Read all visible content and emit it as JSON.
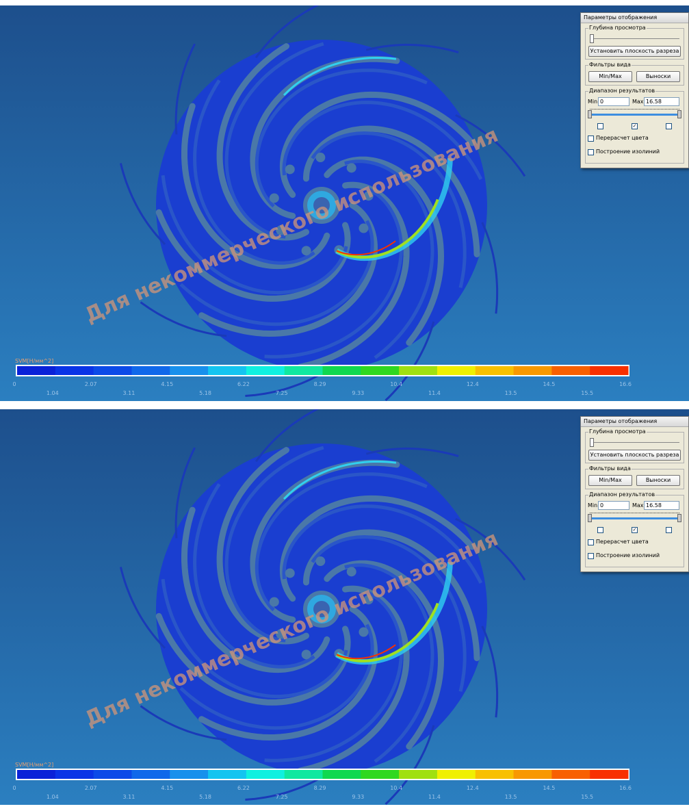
{
  "panels": [
    {
      "watermark": "Для некоммерческого использования",
      "colorbar": {
        "title": "SVM[Н/мм^2]",
        "labels": [
          "0",
          "1.04",
          "2.07",
          "3.11",
          "4.15",
          "5.18",
          "6.22",
          "7.25",
          "8.29",
          "9.33",
          "10.4",
          "11.4",
          "12.4",
          "13.5",
          "14.5",
          "15.5",
          "16.6"
        ],
        "colors": [
          "#0a22d8",
          "#0a34e6",
          "#0c4ae8",
          "#1068ea",
          "#1890ec",
          "#14c4f0",
          "#10f0e0",
          "#10e8a0",
          "#10d850",
          "#30d820",
          "#a0e010",
          "#f0f000",
          "#f8c000",
          "#f89800",
          "#f86000",
          "#f83000",
          "#f00000"
        ]
      },
      "dialog": {
        "title": "Параметры отображения",
        "depth_group": "Глубина просмотра",
        "section_button": "Установить плоскость разреза",
        "filters_group": "Фильтры вида",
        "minmax_button": "Min/Max",
        "callouts_button": "Выноски",
        "range_group": "Диапазон результатов",
        "min_label": "Min",
        "min_value": "0",
        "max_label": "Max",
        "max_value": "16.58",
        "recalc_color": "Перерасчет цвета",
        "isolines": "Построение изолиний"
      }
    },
    {
      "watermark": "Для некоммерческого использования",
      "colorbar": {
        "title": "SVM[Н/мм^2]",
        "labels": [
          "0",
          "1.04",
          "2.07",
          "3.11",
          "4.15",
          "5.18",
          "6.22",
          "7.25",
          "8.29",
          "9.33",
          "10.4",
          "11.4",
          "12.4",
          "13.5",
          "14.5",
          "15.5",
          "16.6"
        ],
        "colors": [
          "#0a22d8",
          "#0a34e6",
          "#0c4ae8",
          "#1068ea",
          "#1890ec",
          "#14c4f0",
          "#10f0e0",
          "#10e8a0",
          "#10d850",
          "#30d820",
          "#a0e010",
          "#f0f000",
          "#f8c000",
          "#f89800",
          "#f86000",
          "#f83000",
          "#f00000"
        ]
      },
      "dialog": {
        "title": "Параметры отображения",
        "depth_group": "Глубина просмотра",
        "section_button": "Установить плоскость разреза",
        "filters_group": "Фильтры вида",
        "minmax_button": "Min/Max",
        "callouts_button": "Выноски",
        "range_group": "Диапазон результатов",
        "min_label": "Min",
        "min_value": "0",
        "max_label": "Max",
        "max_value": "16.58",
        "recalc_color": "Перерасчет цвета",
        "isolines": "Построение изолиний"
      }
    }
  ]
}
